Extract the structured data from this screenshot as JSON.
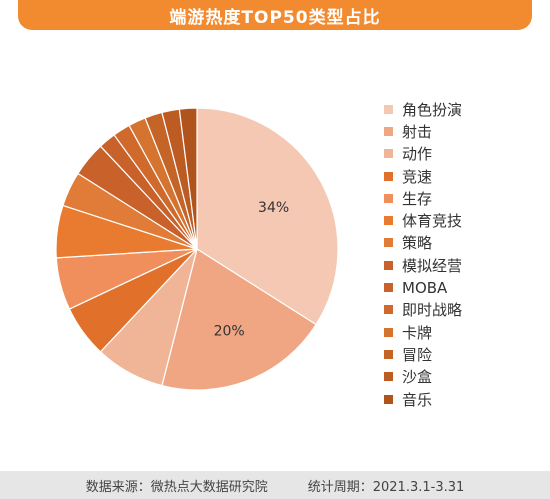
{
  "chart_data": {
    "type": "pie",
    "title": "端游热度TOP50类型占比",
    "categories": [
      "角色扮演",
      "射击",
      "动作",
      "竞速",
      "生存",
      "体育竞技",
      "策略",
      "模拟经营",
      "MOBA",
      "即时战略",
      "卡牌",
      "冒险",
      "沙盒",
      "音乐"
    ],
    "values": [
      34,
      20,
      8,
      6,
      6,
      6,
      4,
      4,
      2,
      2,
      2,
      2,
      2,
      2
    ],
    "data_labels": [
      "34%",
      "20%",
      "",
      "",
      "",
      "",
      "",
      "",
      "",
      "",
      "",
      "",
      "",
      ""
    ],
    "colors": [
      "#f5c8b3",
      "#f0a683",
      "#f0b596",
      "#e0702a",
      "#f08f5c",
      "#e97b30",
      "#e07c38",
      "#c8612a",
      "#c8612a",
      "#cf6a2c",
      "#d4742f",
      "#c46426",
      "#bc5c22",
      "#b0531c"
    ],
    "legend_position": "right"
  },
  "footer": {
    "source": "数据来源：微热点大数据研究院",
    "period": "统计周期：2021.3.1-3.31"
  }
}
